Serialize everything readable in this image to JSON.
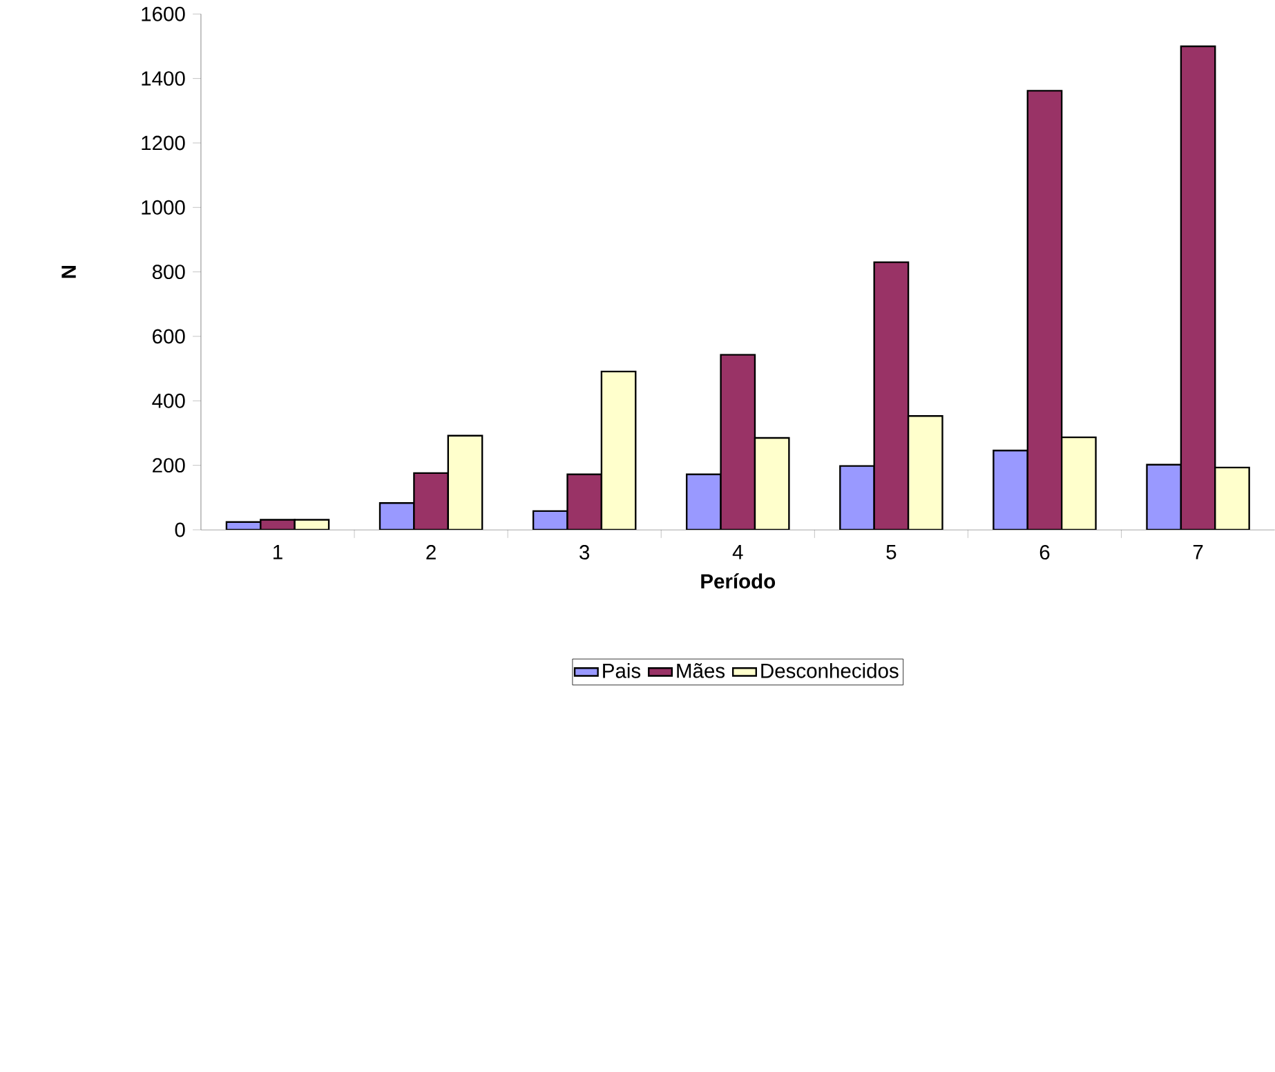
{
  "chart_data": {
    "type": "bar",
    "xlabel": "Período",
    "ylabel": "N",
    "categories": [
      "1",
      "2",
      "3",
      "4",
      "5",
      "6",
      "7"
    ],
    "series": [
      {
        "name": "Pais",
        "color": "#9999ff",
        "values": [
          24,
          83,
          58,
          172,
          198,
          246,
          202
        ]
      },
      {
        "name": "Mães",
        "color": "#993366",
        "values": [
          31,
          176,
          172,
          543,
          830,
          1362,
          1500
        ]
      },
      {
        "name": "Desconhecidos",
        "color": "#ffffcc",
        "values": [
          31,
          292,
          491,
          285,
          353,
          287,
          193
        ]
      }
    ],
    "ylim": [
      0,
      1600
    ],
    "yticks": [
      0,
      200,
      400,
      600,
      800,
      1000,
      1200,
      1400,
      1600
    ],
    "grid": false,
    "legend": "bottom"
  }
}
